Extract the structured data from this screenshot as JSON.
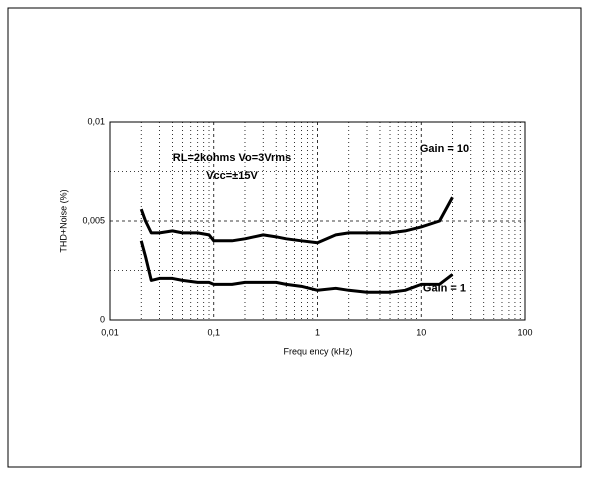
{
  "chart_data": {
    "type": "line",
    "xlabel": "Frequ ency (kHz)",
    "ylabel": "THD+Noise (%)",
    "annotations": [
      "RL=2kohms  Vo=3Vrms",
      "Vcc=±15V"
    ],
    "log_x": true,
    "grid": true,
    "xlim": [
      0.01,
      100
    ],
    "ylim": [
      0,
      0.01
    ],
    "xticks": [
      {
        "value": 0.01,
        "label": "0,01"
      },
      {
        "value": 0.1,
        "label": "0,1"
      },
      1,
      10,
      100
    ],
    "yticks": [
      0,
      {
        "value": 0.005,
        "label": "0,005"
      },
      {
        "value": 0.01,
        "label": "0,01"
      }
    ],
    "x": [
      0.02,
      0.022,
      0.025,
      0.03,
      0.04,
      0.05,
      0.07,
      0.09,
      0.1,
      0.15,
      0.2,
      0.3,
      0.4,
      0.5,
      0.7,
      1,
      1.5,
      2,
      3,
      5,
      7,
      10,
      15,
      20
    ],
    "series": [
      {
        "name": "Gain = 10",
        "color": "#000000",
        "values": [
          0.0056,
          0.005,
          0.0044,
          0.0044,
          0.0045,
          0.0044,
          0.0044,
          0.0043,
          0.004,
          0.004,
          0.0041,
          0.0043,
          0.0042,
          0.0041,
          0.004,
          0.0039,
          0.0043,
          0.0044,
          0.0044,
          0.0044,
          0.0045,
          0.0047,
          0.005,
          0.0062
        ]
      },
      {
        "name": "Gain = 1",
        "color": "#000000",
        "values": [
          0.004,
          0.0032,
          0.002,
          0.0021,
          0.0021,
          0.002,
          0.0019,
          0.0019,
          0.0018,
          0.0018,
          0.0019,
          0.0019,
          0.0019,
          0.0018,
          0.0017,
          0.0015,
          0.0016,
          0.0015,
          0.0014,
          0.0014,
          0.0015,
          0.0018,
          0.0018,
          0.0023
        ]
      }
    ]
  }
}
